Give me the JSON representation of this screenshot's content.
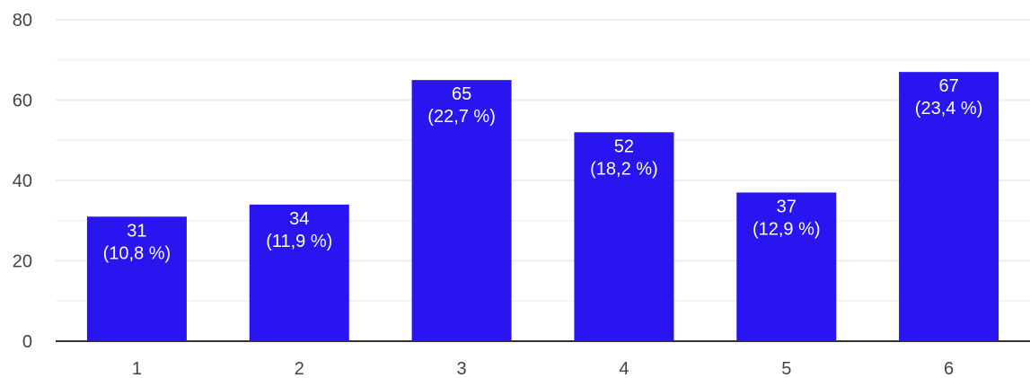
{
  "chart_data": {
    "type": "bar",
    "categories": [
      "1",
      "2",
      "3",
      "4",
      "5",
      "6"
    ],
    "values": [
      31,
      34,
      65,
      52,
      37,
      67
    ],
    "value_labels": [
      "31",
      "34",
      "65",
      "52",
      "37",
      "67"
    ],
    "percent_labels": [
      "(10,8 %)",
      "(11,9 %)",
      "(22,7 %)",
      "(18,2 %)",
      "(12,9 %)",
      "(23,4 %)"
    ],
    "y_ticks": [
      "0",
      "20",
      "40",
      "60",
      "80"
    ],
    "ylim": [
      0,
      80
    ],
    "grid": true,
    "minor_grid": true,
    "title": "",
    "xlabel": "",
    "ylabel": "",
    "colors": {
      "bar": "#2815f0",
      "grid": "#eeeeee",
      "baseline": "#333333",
      "label": "#ffffff",
      "tick": "#444444"
    }
  }
}
